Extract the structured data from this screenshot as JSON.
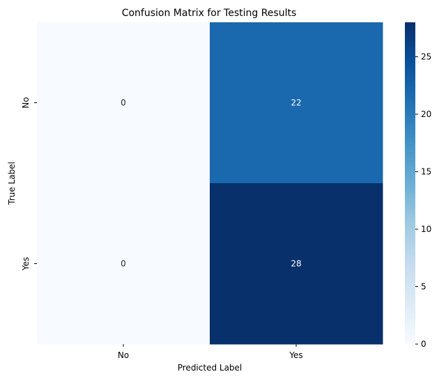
{
  "chart_data": {
    "type": "heatmap",
    "title": "Confusion Matrix for Testing Results",
    "xlabel": "Predicted Label",
    "ylabel": "True Label",
    "x_categories": [
      "No",
      "Yes"
    ],
    "y_categories": [
      "No",
      "Yes"
    ],
    "values": [
      [
        0,
        22
      ],
      [
        0,
        28
      ]
    ],
    "cell_labels": [
      [
        "0",
        "22"
      ],
      [
        "0",
        "28"
      ]
    ],
    "colormap": "Blues",
    "colorbar": {
      "range": [
        0,
        28
      ],
      "ticks": [
        0,
        5,
        10,
        15,
        20,
        25
      ],
      "tick_labels": [
        "0",
        "5",
        "10",
        "15",
        "20",
        "25"
      ]
    },
    "grid": false
  }
}
